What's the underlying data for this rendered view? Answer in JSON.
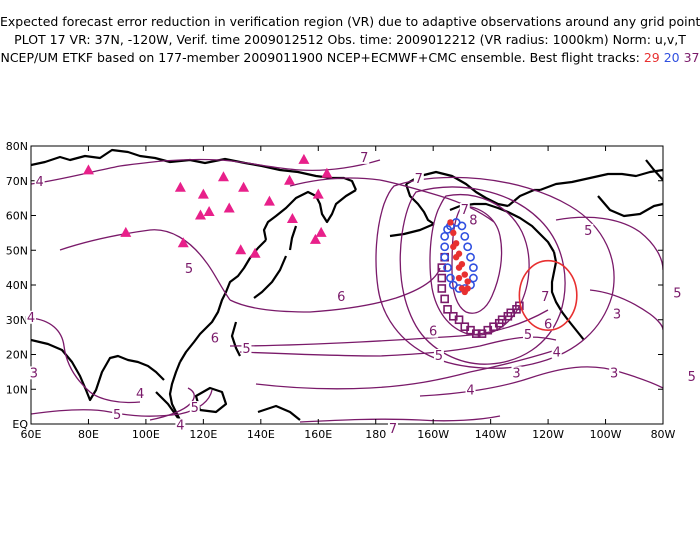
{
  "title_lines": {
    "line1": "Expected forecast error reduction in verification region (VR) due to adaptive observations around any grid point.",
    "line2": "PLOT 17 VR: 37N, -120W, Verif. time 2009012512 Obs. time: 2009012212 (VR radius: 1000km) Norm: u,v,T",
    "line3_prefix": "NCEP/UM ETKF based on 177-member 2009011900 NCEP+ECMWF+CMC ensemble. Best flight tracks:",
    "track_red": "29",
    "track_blue": "20",
    "track_purple": "37"
  },
  "colors": {
    "red": "#e83030",
    "blue": "#3050e0",
    "purple": "#7a1a6a",
    "triangle": "#e8208a",
    "contour": "#7a1a6a",
    "circle": "#e83030"
  },
  "lon_labels": [
    "60E",
    "80E",
    "100E",
    "120E",
    "140E",
    "160E",
    "180",
    "160W",
    "140W",
    "120W",
    "100W",
    "80W"
  ],
  "lat_labels": [
    "EQ",
    "10N",
    "20N",
    "30N",
    "40N",
    "50N",
    "60N",
    "70N",
    "80N"
  ],
  "contour_labels": [
    {
      "t": "4",
      "lon": 63,
      "lat": 69
    },
    {
      "t": "7",
      "lon": 176,
      "lat": 76
    },
    {
      "t": "7",
      "lon": 195,
      "lat": 70
    },
    {
      "t": "7",
      "lon": 211,
      "lat": 61
    },
    {
      "t": "8",
      "lon": 214,
      "lat": 58
    },
    {
      "t": "5",
      "lon": 254,
      "lat": 55
    },
    {
      "t": "5",
      "lon": 115,
      "lat": 44
    },
    {
      "t": "6",
      "lon": 168,
      "lat": 36
    },
    {
      "t": "6",
      "lon": 124,
      "lat": 24
    },
    {
      "t": "5",
      "lon": 135,
      "lat": 21
    },
    {
      "t": "6",
      "lon": 200,
      "lat": 26
    },
    {
      "t": "5",
      "lon": 202,
      "lat": 19
    },
    {
      "t": "4",
      "lon": 60,
      "lat": 30
    },
    {
      "t": "3",
      "lon": 61,
      "lat": 14
    },
    {
      "t": "4",
      "lon": 98,
      "lat": 8
    },
    {
      "t": "5",
      "lon": 90,
      "lat": 2
    },
    {
      "t": "5",
      "lon": 117,
      "lat": 4
    },
    {
      "t": "4",
      "lon": 112,
      "lat": -1
    },
    {
      "t": "4",
      "lon": 213,
      "lat": 9
    },
    {
      "t": "3",
      "lon": 229,
      "lat": 14
    },
    {
      "t": "7",
      "lon": 186,
      "lat": -2
    },
    {
      "t": "7",
      "lon": 239,
      "lat": 36
    },
    {
      "t": "6",
      "lon": 240,
      "lat": 28
    },
    {
      "t": "5",
      "lon": 233,
      "lat": 25
    },
    {
      "t": "4",
      "lon": 243,
      "lat": 20
    },
    {
      "t": "3",
      "lon": 264,
      "lat": 31
    },
    {
      "t": "3",
      "lon": 263,
      "lat": 14
    },
    {
      "t": "5",
      "lon": 285,
      "lat": 37
    },
    {
      "t": "5",
      "lon": 290,
      "lat": 13
    }
  ],
  "triangles": [
    {
      "lon": 80,
      "lat": 73
    },
    {
      "lon": 93,
      "lat": 55
    },
    {
      "lon": 112,
      "lat": 68
    },
    {
      "lon": 113,
      "lat": 52
    },
    {
      "lon": 120,
      "lat": 66
    },
    {
      "lon": 122,
      "lat": 61
    },
    {
      "lon": 127,
      "lat": 71
    },
    {
      "lon": 129,
      "lat": 62
    },
    {
      "lon": 134,
      "lat": 68
    },
    {
      "lon": 119,
      "lat": 60
    },
    {
      "lon": 133,
      "lat": 50
    },
    {
      "lon": 138,
      "lat": 49
    },
    {
      "lon": 143,
      "lat": 64
    },
    {
      "lon": 150,
      "lat": 70
    },
    {
      "lon": 151,
      "lat": 59
    },
    {
      "lon": 155,
      "lat": 76
    },
    {
      "lon": 160,
      "lat": 66
    },
    {
      "lon": 161,
      "lat": 55
    },
    {
      "lon": 159,
      "lat": 53
    },
    {
      "lon": 163,
      "lat": 72
    }
  ],
  "vr_circle": {
    "lon": 240,
    "lat": 37,
    "radius_deg": 10
  }
}
